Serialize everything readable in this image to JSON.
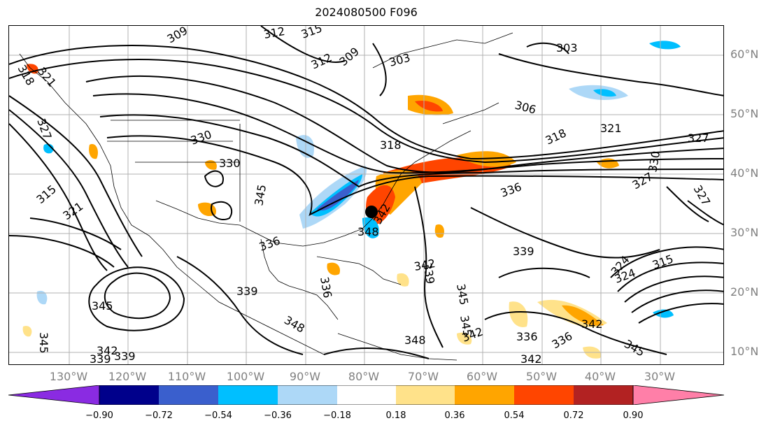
{
  "title": "2024080500 F096",
  "lat_labels": [
    "60°N",
    "50°N",
    "40°N",
    "30°N",
    "20°N",
    "10°N"
  ],
  "lon_labels": [
    "130°W",
    "120°W",
    "110°W",
    "100°W",
    "90°W",
    "80°W",
    "70°W",
    "60°W",
    "50°W",
    "40°W",
    "30°W"
  ],
  "colorbar": {
    "ticks": [
      "−0.90",
      "−0.72",
      "−0.54",
      "−0.36",
      "−0.18",
      "0.18",
      "0.36",
      "0.54",
      "0.72",
      "0.90"
    ],
    "colors": [
      "#8a2be2",
      "#00008b",
      "#3a5fcd",
      "#00bfff",
      "#add8f7",
      "#ffffff",
      "#ffe28a",
      "#ffa500",
      "#ff4500",
      "#b22222",
      "#ff7fa8"
    ],
    "extend": "both"
  },
  "contour_labels": [
    {
      "text": "309"
    },
    {
      "text": "312"
    },
    {
      "text": "315"
    },
    {
      "text": "312"
    },
    {
      "text": "309"
    },
    {
      "text": "303"
    },
    {
      "text": "303"
    },
    {
      "text": "306"
    },
    {
      "text": "318"
    },
    {
      "text": "321"
    },
    {
      "text": "327"
    },
    {
      "text": "327"
    },
    {
      "text": "330"
    },
    {
      "text": "327"
    },
    {
      "text": "324"
    },
    {
      "text": "321"
    },
    {
      "text": "315"
    },
    {
      "text": "321"
    },
    {
      "text": "330"
    },
    {
      "text": "336"
    },
    {
      "text": "327"
    },
    {
      "text": "330"
    },
    {
      "text": "318"
    },
    {
      "text": "345"
    },
    {
      "text": "342"
    },
    {
      "text": "348"
    },
    {
      "text": "336"
    },
    {
      "text": "339"
    },
    {
      "text": "345"
    },
    {
      "text": "348"
    },
    {
      "text": "342"
    },
    {
      "text": "339"
    },
    {
      "text": "339"
    },
    {
      "text": "336"
    },
    {
      "text": "342"
    },
    {
      "text": "345"
    },
    {
      "text": "345"
    },
    {
      "text": "324"
    },
    {
      "text": "315"
    },
    {
      "text": "342"
    },
    {
      "text": "339"
    },
    {
      "text": "336"
    },
    {
      "text": "345"
    },
    {
      "text": "318"
    },
    {
      "text": "348"
    },
    {
      "text": "342"
    },
    {
      "text": "339"
    },
    {
      "text": "336"
    },
    {
      "text": "342"
    },
    {
      "text": "345"
    }
  ],
  "marker": {
    "label": "storm center"
  }
}
